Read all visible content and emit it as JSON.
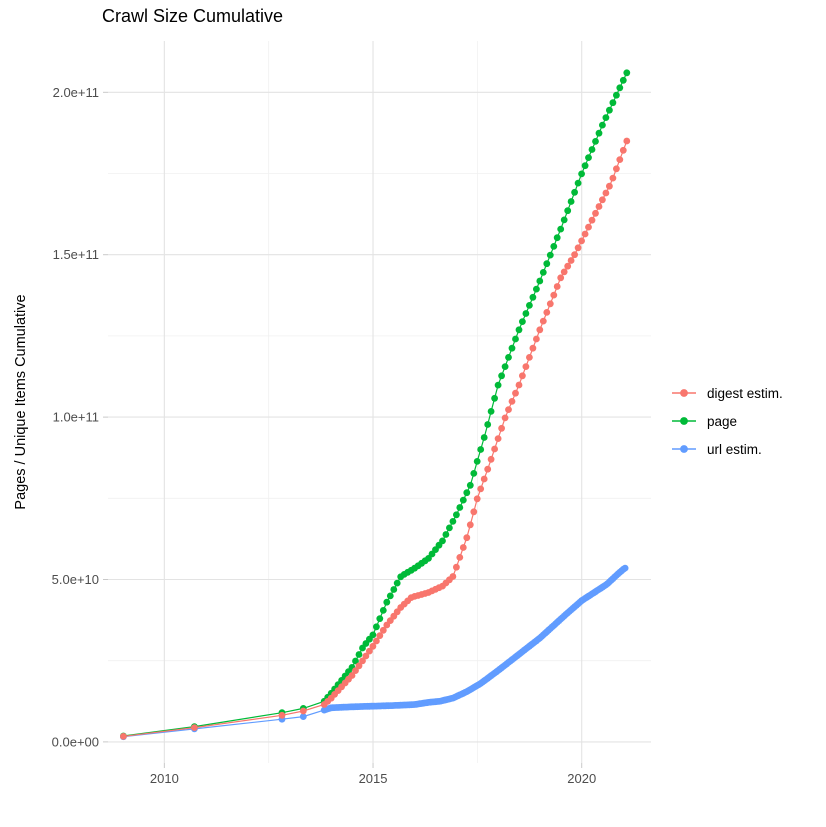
{
  "page": {
    "background": "#FFFFFF"
  },
  "chart_data": {
    "type": "scatter",
    "title": "Crawl Size Cumulative",
    "xlabel": "",
    "ylabel": "Pages / Unique Items Cumulative",
    "legend_position": "right",
    "grid": true,
    "xlim": [
      2008.65,
      2021.66
    ],
    "ylim": [
      -6500000000.0,
      215800000000.0
    ],
    "x_ticks": {
      "values": [
        2010,
        2015,
        2020
      ],
      "labels": [
        "2010",
        "2015",
        "2020"
      ],
      "minor": [
        2012.5,
        2017.5
      ]
    },
    "y_ticks": {
      "values": [
        0,
        50000000000.0,
        100000000000.0,
        150000000000.0,
        200000000000.0
      ],
      "labels": [
        "0.0e+00",
        "5.0e+10",
        "1.0e+11",
        "1.5e+11",
        "2.0e+11"
      ],
      "minor": [
        25000000000.0,
        75000000000.0,
        125000000000.0,
        175000000000.0
      ]
    },
    "point_years_sparse": [
      2009.02,
      2010.72,
      2012.82,
      2013.33
    ],
    "series": [
      {
        "name": "digest estim.",
        "color": "#F8766D",
        "cadence": {
          "start": 2013.83,
          "end": 2021.08,
          "per_year": 12
        },
        "anchors": [
          [
            2009.02,
            1700000000.0
          ],
          [
            2010.72,
            4400000000.0
          ],
          [
            2012.82,
            8200000000.0
          ],
          [
            2013.33,
            9500000000.0
          ],
          [
            2013.83,
            11500000000.0
          ],
          [
            2014.0,
            13500000000.0
          ],
          [
            2014.25,
            17000000000.0
          ],
          [
            2014.5,
            20500000000.0
          ],
          [
            2014.75,
            25000000000.0
          ],
          [
            2015.0,
            29500000000.0
          ],
          [
            2015.33,
            36000000000.0
          ],
          [
            2015.67,
            41500000000.0
          ],
          [
            2015.92,
            44500000000.0
          ],
          [
            2016.33,
            46000000000.0
          ],
          [
            2016.67,
            48000000000.0
          ],
          [
            2016.92,
            51000000000.0
          ],
          [
            2017.25,
            63000000000.0
          ],
          [
            2017.5,
            75000000000.0
          ],
          [
            2017.83,
            87000000000.0
          ],
          [
            2018.17,
            100000000000.0
          ],
          [
            2018.5,
            110000000000.0
          ],
          [
            2019.0,
            127000000000.0
          ],
          [
            2019.5,
            143000000000.0
          ],
          [
            2019.83,
            150000000000.0
          ],
          [
            2020.3,
            162000000000.0
          ],
          [
            2020.7,
            172000000000.0
          ],
          [
            2021.08,
            185000000000.0
          ]
        ]
      },
      {
        "name": "page",
        "color": "#00BA38",
        "cadence": {
          "start": 2013.83,
          "end": 2021.08,
          "per_year": 12
        },
        "anchors": [
          [
            2009.02,
            1800000000.0
          ],
          [
            2010.72,
            4700000000.0
          ],
          [
            2012.82,
            9000000000.0
          ],
          [
            2013.33,
            10300000000.0
          ],
          [
            2013.83,
            12500000000.0
          ],
          [
            2014.0,
            15000000000.0
          ],
          [
            2014.25,
            19000000000.0
          ],
          [
            2014.5,
            23000000000.0
          ],
          [
            2014.75,
            29000000000.0
          ],
          [
            2015.0,
            33000000000.0
          ],
          [
            2015.33,
            43000000000.0
          ],
          [
            2015.67,
            51000000000.0
          ],
          [
            2016.0,
            53500000000.0
          ],
          [
            2016.33,
            56500000000.0
          ],
          [
            2016.67,
            62000000000.0
          ],
          [
            2017.0,
            70000000000.0
          ],
          [
            2017.33,
            79000000000.0
          ],
          [
            2017.67,
            94000000000.0
          ],
          [
            2018.0,
            110000000000.0
          ],
          [
            2018.5,
            127000000000.0
          ],
          [
            2019.0,
            142000000000.0
          ],
          [
            2019.5,
            158000000000.0
          ],
          [
            2020.0,
            175000000000.0
          ],
          [
            2020.5,
            190000000000.0
          ],
          [
            2021.08,
            206000000000.0
          ]
        ]
      },
      {
        "name": "url estim.",
        "color": "#619CFF",
        "cadence": {
          "start": 2013.83,
          "end": 2021.03,
          "per_year": 24
        },
        "anchors": [
          [
            2009.02,
            1600000000.0
          ],
          [
            2010.72,
            4000000000.0
          ],
          [
            2012.82,
            7000000000.0
          ],
          [
            2013.33,
            7800000000.0
          ],
          [
            2013.83,
            9800000000.0
          ],
          [
            2014.0,
            10500000000.0
          ],
          [
            2014.5,
            10800000000.0
          ],
          [
            2015.0,
            11000000000.0
          ],
          [
            2015.5,
            11200000000.0
          ],
          [
            2016.0,
            11500000000.0
          ],
          [
            2016.35,
            12200000000.0
          ],
          [
            2016.6,
            12500000000.0
          ],
          [
            2016.92,
            13500000000.0
          ],
          [
            2017.25,
            15500000000.0
          ],
          [
            2017.58,
            18000000000.0
          ],
          [
            2018.0,
            22000000000.0
          ],
          [
            2018.3,
            25000000000.0
          ],
          [
            2018.7,
            29000000000.0
          ],
          [
            2019.0,
            32000000000.0
          ],
          [
            2019.3,
            35500000000.0
          ],
          [
            2019.6,
            39000000000.0
          ],
          [
            2020.0,
            43500000000.0
          ],
          [
            2020.3,
            46000000000.0
          ],
          [
            2020.6,
            48500000000.0
          ],
          [
            2020.85,
            51500000000.0
          ],
          [
            2021.03,
            53500000000.0
          ]
        ]
      }
    ]
  },
  "style_colors": {
    "grid_major": "#E3E3E3",
    "grid_minor": "#F0F0F0",
    "tick": "#C9C9C9",
    "tick_label": "#4D4D4D",
    "text": "#000000"
  }
}
